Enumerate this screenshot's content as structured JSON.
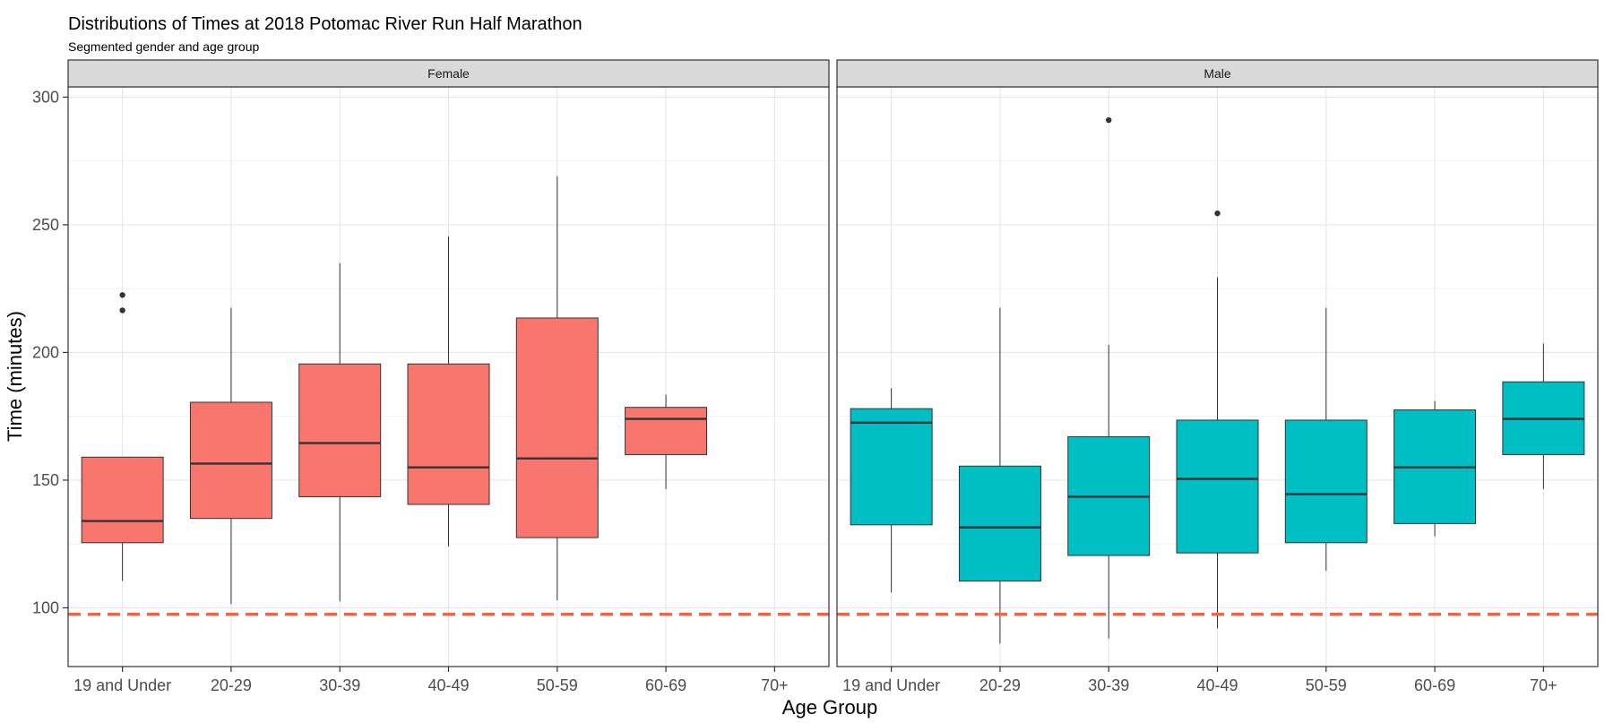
{
  "chart_data": {
    "type": "boxplot",
    "title": "Distributions of Times at 2018 Potomac River Run Half Marathon",
    "subtitle": "Segmented gender and age group",
    "xlabel": "Age Group",
    "ylabel": "Time (minutes)",
    "ylim": [
      77,
      304
    ],
    "yticks": [
      100,
      150,
      200,
      250,
      300
    ],
    "grid": true,
    "legend": "none",
    "reference_line": {
      "y": 97.5,
      "color": "#f8623f",
      "style": "dashed"
    },
    "categories": [
      "19 and Under",
      "20-29",
      "30-39",
      "40-49",
      "50-59",
      "60-69",
      "70+"
    ],
    "facets": [
      {
        "label": "Female",
        "fill": "#f8766d",
        "boxes": [
          {
            "category": "19 and Under",
            "min": 110.5,
            "q1": 125.5,
            "median": 134.0,
            "q3": 159.0,
            "max": 159.0,
            "outliers": [
              216.5,
              222.5
            ]
          },
          {
            "category": "20-29",
            "min": 101.5,
            "q1": 135.0,
            "median": 156.5,
            "q3": 180.5,
            "max": 217.5,
            "outliers": []
          },
          {
            "category": "30-39",
            "min": 102.5,
            "q1": 143.5,
            "median": 164.5,
            "q3": 195.5,
            "max": 235.0,
            "outliers": []
          },
          {
            "category": "40-49",
            "min": 124.0,
            "q1": 140.5,
            "median": 155.0,
            "q3": 195.5,
            "max": 245.5,
            "outliers": []
          },
          {
            "category": "50-59",
            "min": 103.0,
            "q1": 127.5,
            "median": 158.5,
            "q3": 213.5,
            "max": 269.0,
            "outliers": []
          },
          {
            "category": "60-69",
            "min": 146.5,
            "q1": 160.0,
            "median": 174.0,
            "q3": 178.5,
            "max": 183.5,
            "outliers": []
          }
        ]
      },
      {
        "label": "Male",
        "fill": "#00bfc4",
        "boxes": [
          {
            "category": "19 and Under",
            "min": 106.0,
            "q1": 132.5,
            "median": 172.5,
            "q3": 178.0,
            "max": 186.0,
            "outliers": []
          },
          {
            "category": "20-29",
            "min": 86.0,
            "q1": 110.5,
            "median": 131.5,
            "q3": 155.5,
            "max": 217.5,
            "outliers": []
          },
          {
            "category": "30-39",
            "min": 88.0,
            "q1": 120.5,
            "median": 143.5,
            "q3": 167.0,
            "max": 203.0,
            "outliers": [
              291.0
            ]
          },
          {
            "category": "40-49",
            "min": 92.0,
            "q1": 121.5,
            "median": 150.5,
            "q3": 173.5,
            "max": 229.5,
            "outliers": [
              254.5
            ]
          },
          {
            "category": "50-59",
            "min": 114.5,
            "q1": 125.5,
            "median": 144.5,
            "q3": 173.5,
            "max": 217.5,
            "outliers": []
          },
          {
            "category": "60-69",
            "min": 128.0,
            "q1": 133.0,
            "median": 155.0,
            "q3": 177.5,
            "max": 181.0,
            "outliers": []
          },
          {
            "category": "70+",
            "min": 146.5,
            "q1": 160.0,
            "median": 174.0,
            "q3": 188.5,
            "max": 203.5,
            "outliers": []
          }
        ]
      }
    ]
  }
}
